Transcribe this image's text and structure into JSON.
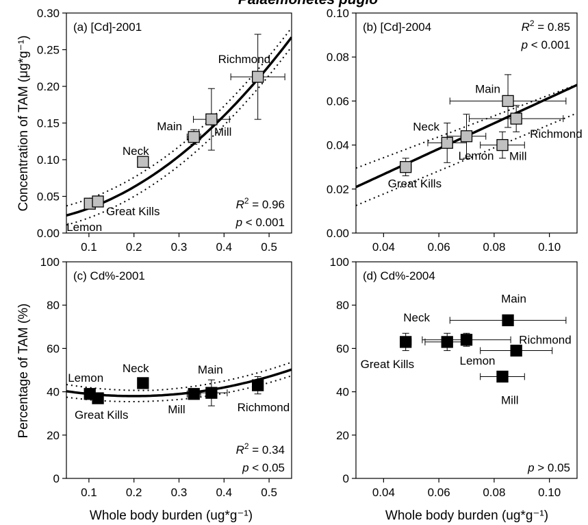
{
  "figure": {
    "title": "Palaemonetes pugio",
    "ylabel_top": "Concentration of TAM (μg*g⁻¹)",
    "ylabel_bottom": "Percentage of TAM (%)",
    "xlabel": "Whole body burden (ug*g⁻¹)"
  },
  "colors": {
    "marker_top": "#c0c0c0",
    "marker_bottom": "#000000",
    "line": "#000000"
  },
  "chart_data": [
    {
      "panel": "a",
      "type": "scatter",
      "title": "(a) [Cd]-2001",
      "xlim": [
        0.05,
        0.55
      ],
      "ylim": [
        0.0,
        0.3
      ],
      "xticks": [
        "0.1",
        "0.2",
        "0.3",
        "0.4",
        "0.5"
      ],
      "yticks": [
        "0.00",
        "0.05",
        "0.10",
        "0.15",
        "0.20",
        "0.25",
        "0.30"
      ],
      "xtick_values": [
        0.1,
        0.2,
        0.3,
        0.4,
        0.5
      ],
      "ytick_values": [
        0.0,
        0.05,
        0.1,
        0.15,
        0.2,
        0.25,
        0.3
      ],
      "marker": "gray-square",
      "points": [
        {
          "site": "Lemon",
          "x": 0.102,
          "y": 0.04,
          "xerr": 0,
          "yerr": 0
        },
        {
          "site": "Great Kills",
          "x": 0.12,
          "y": 0.043,
          "xerr": 0,
          "yerr": 0
        },
        {
          "site": "Neck",
          "x": 0.22,
          "y": 0.097,
          "xerr": 0,
          "yerr": 0
        },
        {
          "site": "Main",
          "x": 0.333,
          "y": 0.131,
          "xerr": 0.015,
          "yerr": 0.01
        },
        {
          "site": "Mill",
          "x": 0.372,
          "y": 0.155,
          "xerr": 0.04,
          "yerr": 0.042
        },
        {
          "site": "Richmond",
          "x": 0.475,
          "y": 0.213,
          "xerr": 0.06,
          "yerr": 0.058
        }
      ],
      "fit": {
        "type": "quadratic",
        "coef": [
          0.0176,
          0.096,
          0.65
        ],
        "ci_width": 0.013
      },
      "stats": {
        "r2": "= 0.96",
        "p": "< 0.001",
        "position": "bottom-right"
      }
    },
    {
      "panel": "b",
      "type": "scatter",
      "title": "(b) [Cd]-2004",
      "xlim": [
        0.03,
        0.11
      ],
      "ylim": [
        0.0,
        0.1
      ],
      "xticks": [
        "0.04",
        "0.06",
        "0.08",
        "0.10"
      ],
      "yticks": [
        "0.00",
        "0.02",
        "0.04",
        "0.06",
        "0.08",
        "0.10"
      ],
      "xtick_values": [
        0.04,
        0.06,
        0.08,
        0.1
      ],
      "ytick_values": [
        0.0,
        0.02,
        0.04,
        0.06,
        0.08,
        0.1
      ],
      "marker": "gray-square",
      "points": [
        {
          "site": "Great Kills",
          "x": 0.048,
          "y": 0.03,
          "xerr": 0.002,
          "yerr": 0.004
        },
        {
          "site": "Neck",
          "x": 0.063,
          "y": 0.041,
          "xerr": 0.007,
          "yerr": 0.009
        },
        {
          "site": "Lemon",
          "x": 0.07,
          "y": 0.044,
          "xerr": 0.007,
          "yerr": 0.01
        },
        {
          "site": "Mill",
          "x": 0.083,
          "y": 0.04,
          "xerr": 0.008,
          "yerr": 0.006
        },
        {
          "site": "Main",
          "x": 0.085,
          "y": 0.06,
          "xerr": 0.021,
          "yerr": 0.012
        },
        {
          "site": "Richmond",
          "x": 0.088,
          "y": 0.052,
          "xerr": 0.017,
          "yerr": 0.006
        }
      ],
      "fit": {
        "type": "linear",
        "coef": [
          0.0035,
          0.58
        ],
        "ci_lower": [
          0.0125,
          0.0545
        ],
        "ci_upper": [
          0.0295,
          0.0675
        ]
      },
      "stats": {
        "r2": "= 0.85",
        "p": "< 0.001",
        "position": "top-right"
      }
    },
    {
      "panel": "c",
      "type": "scatter",
      "title": "(c) Cd%-2001",
      "xlim": [
        0.05,
        0.55
      ],
      "ylim": [
        0,
        100
      ],
      "xticks": [
        "0.1",
        "0.2",
        "0.3",
        "0.4",
        "0.5"
      ],
      "yticks": [
        "0",
        "20",
        "40",
        "60",
        "80",
        "100"
      ],
      "xtick_values": [
        0.1,
        0.2,
        0.3,
        0.4,
        0.5
      ],
      "ytick_values": [
        0,
        20,
        40,
        60,
        80,
        100
      ],
      "marker": "black-square",
      "points": [
        {
          "site": "Lemon",
          "x": 0.102,
          "y": 39,
          "xerr": 0,
          "yerr": 0
        },
        {
          "site": "Great Kills",
          "x": 0.12,
          "y": 37,
          "xerr": 0,
          "yerr": 2
        },
        {
          "site": "Neck",
          "x": 0.22,
          "y": 44,
          "xerr": 0,
          "yerr": 0
        },
        {
          "site": "Mill",
          "x": 0.333,
          "y": 39,
          "xerr": 0.015,
          "yerr": 2
        },
        {
          "site": "Main",
          "x": 0.372,
          "y": 39.5,
          "xerr": 0.035,
          "yerr": 6
        },
        {
          "site": "Richmond",
          "x": 0.475,
          "y": 43,
          "xerr": 0.01,
          "yerr": 4
        }
      ],
      "fit": {
        "type": "quadratic",
        "coef": [
          42.0,
          -40.0,
          100.0
        ],
        "ci_lower_offset": 2.5,
        "ci_upper_offset": 2.5
      },
      "stats": {
        "r2": "= 0.34",
        "p": "< 0.05",
        "position": "bottom-right"
      }
    },
    {
      "panel": "d",
      "type": "scatter",
      "title": "(d) Cd%-2004",
      "xlim": [
        0.03,
        0.11
      ],
      "ylim": [
        0,
        100
      ],
      "xticks": [
        "0.04",
        "0.06",
        "0.08",
        "0.10"
      ],
      "yticks": [
        "0",
        "20",
        "40",
        "60",
        "80",
        "100"
      ],
      "xtick_values": [
        0.04,
        0.06,
        0.08,
        0.1
      ],
      "ytick_values": [
        0,
        20,
        40,
        60,
        80,
        100
      ],
      "marker": "black-square",
      "points": [
        {
          "site": "Great Kills",
          "x": 0.048,
          "y": 63,
          "xerr": 0.002,
          "yerr": 4
        },
        {
          "site": "Neck",
          "x": 0.063,
          "y": 63,
          "xerr": 0.008,
          "yerr": 4
        },
        {
          "site": "Lemon",
          "x": 0.07,
          "y": 64,
          "xerr": 0.016,
          "yerr": 3
        },
        {
          "site": "Main",
          "x": 0.085,
          "y": 73,
          "xerr": 0.021,
          "yerr": 2
        },
        {
          "site": "Richmond",
          "x": 0.088,
          "y": 59,
          "xerr": 0.013,
          "yerr": 2
        },
        {
          "site": "Mill",
          "x": 0.083,
          "y": 47,
          "xerr": 0.008,
          "yerr": 0
        }
      ],
      "stats": {
        "p": "> 0.05",
        "position": "bottom-right"
      }
    }
  ]
}
